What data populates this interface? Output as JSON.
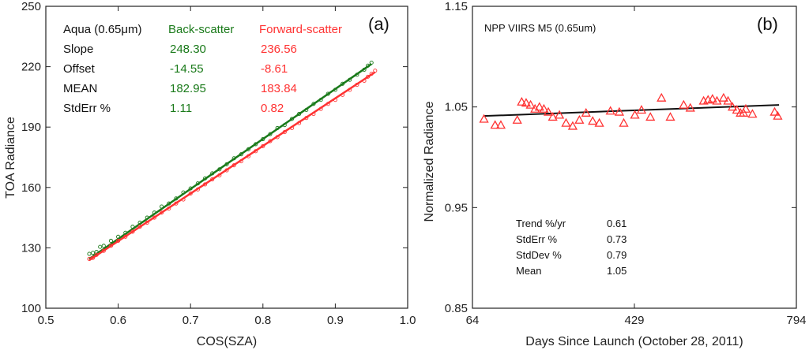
{
  "chart_data": [
    {
      "type": "scatter",
      "panel_label": "(a)",
      "xlabel": "COS(SZA)",
      "ylabel": "TOA Radiance",
      "xlim": [
        0.5,
        1.0
      ],
      "ylim": [
        100,
        250
      ],
      "xticks": [
        "0.5",
        "0.6",
        "0.7",
        "0.8",
        "0.9",
        "1.0"
      ],
      "yticks": [
        "100",
        "130",
        "160",
        "190",
        "220",
        "250"
      ],
      "xtick_values": [
        0.5,
        0.6,
        0.7,
        0.8,
        0.9,
        1.0
      ],
      "ytick_values": [
        100,
        130,
        160,
        190,
        220,
        250
      ],
      "stats": {
        "header": "Aqua (0.65μm)",
        "columns": [
          "Back-scatter",
          "Forward-scatter"
        ],
        "rows": [
          {
            "label": "Slope",
            "values": [
              "248.30",
              "236.56"
            ]
          },
          {
            "label": "Offset",
            "values": [
              "-14.55",
              "-8.61"
            ]
          },
          {
            "label": "MEAN",
            "values": [
              "182.95",
              "183.84"
            ]
          },
          {
            "label": "StdErr %",
            "values": [
              "1.11",
              "0.82"
            ]
          }
        ]
      },
      "series": [
        {
          "name": "Back-scatter",
          "color": "#1a7a1a",
          "slope": 248.3,
          "offset": -14.55,
          "x": [
            0.56,
            0.565,
            0.57,
            0.575,
            0.58,
            0.59,
            0.6,
            0.61,
            0.62,
            0.63,
            0.64,
            0.65,
            0.66,
            0.67,
            0.68,
            0.69,
            0.7,
            0.71,
            0.72,
            0.73,
            0.74,
            0.75,
            0.76,
            0.77,
            0.78,
            0.79,
            0.8,
            0.81,
            0.82,
            0.83,
            0.84,
            0.85,
            0.86,
            0.87,
            0.88,
            0.89,
            0.9,
            0.91,
            0.92,
            0.93,
            0.94,
            0.945,
            0.95
          ],
          "y": [
            127.0,
            127.5,
            128.0,
            130.5,
            131.0,
            133.5,
            135.5,
            137.5,
            140.5,
            142.5,
            145.0,
            147.5,
            150.5,
            152.0,
            154.5,
            157.5,
            159.5,
            162.0,
            164.5,
            167.0,
            169.0,
            171.5,
            174.5,
            176.5,
            179.0,
            181.5,
            184.0,
            186.5,
            189.5,
            191.0,
            194.0,
            196.5,
            198.5,
            201.5,
            203.5,
            206.5,
            208.5,
            211.5,
            213.5,
            216.0,
            218.5,
            220.5,
            222.0
          ]
        },
        {
          "name": "Forward-scatter",
          "color": "#ff3333",
          "slope": 236.56,
          "offset": -8.61,
          "x": [
            0.56,
            0.565,
            0.57,
            0.58,
            0.59,
            0.6,
            0.61,
            0.62,
            0.63,
            0.64,
            0.65,
            0.66,
            0.67,
            0.68,
            0.69,
            0.7,
            0.71,
            0.72,
            0.73,
            0.74,
            0.75,
            0.76,
            0.77,
            0.78,
            0.79,
            0.8,
            0.81,
            0.82,
            0.83,
            0.84,
            0.85,
            0.86,
            0.87,
            0.88,
            0.89,
            0.9,
            0.91,
            0.92,
            0.93,
            0.94,
            0.945,
            0.95,
            0.955
          ],
          "y": [
            124.5,
            125.0,
            126.5,
            128.5,
            131.0,
            133.5,
            135.5,
            138.0,
            140.5,
            142.5,
            145.0,
            147.5,
            149.5,
            152.0,
            154.0,
            157.0,
            159.0,
            161.5,
            164.0,
            166.0,
            168.5,
            171.0,
            173.0,
            175.5,
            178.0,
            180.5,
            183.0,
            185.0,
            187.5,
            189.5,
            192.0,
            194.5,
            196.5,
            199.0,
            201.5,
            203.5,
            206.0,
            208.5,
            211.0,
            213.0,
            215.0,
            216.5,
            218.0
          ]
        }
      ]
    },
    {
      "type": "scatter",
      "panel_label": "(b)",
      "title": "NPP VIIRS M5 (0.65um)",
      "xlabel": "Days Since Launch (October 28, 2011)",
      "ylabel": "Normalized Radiance",
      "xlim": [
        64,
        794
      ],
      "ylim": [
        0.85,
        1.15
      ],
      "xticks": [
        "64",
        "429",
        "794"
      ],
      "yticks": [
        "0.85",
        "0.95",
        "1.05",
        "1.15"
      ],
      "xtick_values": [
        64,
        429,
        794
      ],
      "ytick_values": [
        0.85,
        0.95,
        1.05,
        1.15
      ],
      "marker_color": "#ff3333",
      "trend": {
        "x": [
          90,
          755
        ],
        "y": [
          1.041,
          1.052
        ]
      },
      "x": [
        90,
        115,
        128,
        165,
        175,
        185,
        195,
        205,
        215,
        225,
        235,
        245,
        260,
        275,
        290,
        305,
        320,
        335,
        350,
        375,
        395,
        405,
        430,
        445,
        465,
        490,
        510,
        540,
        555,
        585,
        595,
        605,
        615,
        630,
        640,
        650,
        660,
        668,
        675,
        680,
        695,
        745,
        752
      ],
      "y": [
        1.038,
        1.032,
        1.032,
        1.037,
        1.055,
        1.054,
        1.052,
        1.048,
        1.05,
        1.048,
        1.045,
        1.04,
        1.042,
        1.034,
        1.031,
        1.037,
        1.044,
        1.036,
        1.034,
        1.046,
        1.045,
        1.034,
        1.042,
        1.047,
        1.04,
        1.059,
        1.04,
        1.052,
        1.049,
        1.056,
        1.057,
        1.058,
        1.056,
        1.059,
        1.056,
        1.05,
        1.047,
        1.044,
        1.044,
        1.048,
        1.043,
        1.045,
        1.041
      ],
      "stats": [
        {
          "label": "Trend %/yr",
          "value": "0.61"
        },
        {
          "label": "StdErr %",
          "value": "0.73"
        },
        {
          "label": "StdDev %",
          "value": "0.79"
        },
        {
          "label": "Mean",
          "value": "1.05"
        }
      ]
    }
  ]
}
